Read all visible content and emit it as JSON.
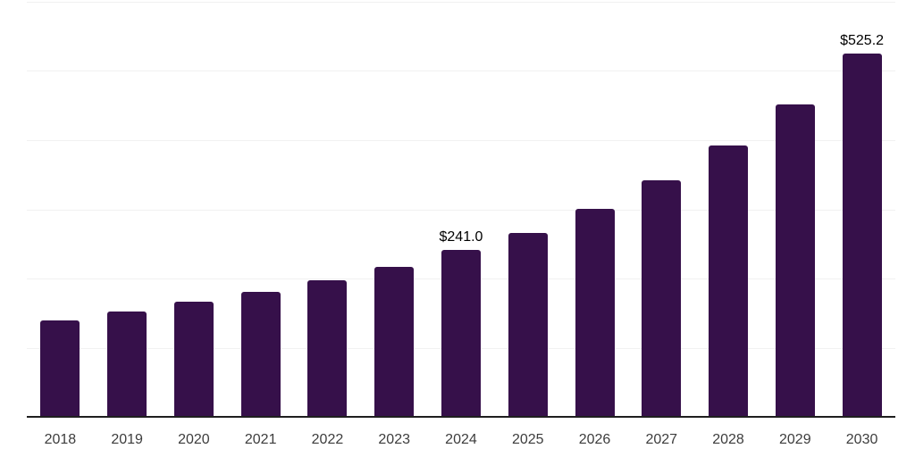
{
  "chart_data": {
    "type": "bar",
    "title": "",
    "xlabel": "",
    "ylabel": "",
    "categories": [
      "2018",
      "2019",
      "2020",
      "2021",
      "2022",
      "2023",
      "2024",
      "2025",
      "2026",
      "2027",
      "2028",
      "2029",
      "2030"
    ],
    "values": [
      139.8,
      152.6,
      166.0,
      181.2,
      197.9,
      217.4,
      241.0,
      266.4,
      300.1,
      341.4,
      392.0,
      451.3,
      525.2
    ],
    "data_labels": [
      null,
      null,
      null,
      null,
      null,
      null,
      "$241.0",
      null,
      null,
      null,
      null,
      null,
      "$525.2"
    ],
    "ylim": [
      0,
      600
    ],
    "gridline_values": [
      100,
      200,
      300,
      400,
      500,
      600
    ],
    "grid": true,
    "legend": "none",
    "colors": {
      "bar": "#36104a",
      "gridline": "#f1f1f1",
      "axis_line": "#1f1f1f",
      "data_label": "#000000",
      "tick_label": "#3d3d3d",
      "background": "#ffffff"
    }
  }
}
